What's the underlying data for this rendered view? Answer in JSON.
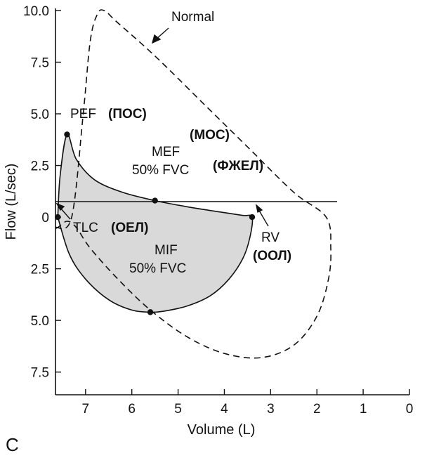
{
  "chart_data": {
    "type": "line",
    "xlabel": "Volume (L)",
    "ylabel": "Flow (L/sec)",
    "xlim": [
      7.65,
      0
    ],
    "ylim": [
      -8.6,
      10.0
    ],
    "x_ticks": [
      7,
      6,
      5,
      4,
      3,
      2,
      1,
      0
    ],
    "x_tick_labels": [
      "7",
      "6",
      "5",
      "4",
      "3",
      "2",
      "1",
      "0"
    ],
    "y_ticks": [
      10.0,
      7.5,
      5.0,
      2.5,
      0,
      -2.5,
      -5.0,
      -7.5
    ],
    "y_tick_labels": [
      "10.0",
      "7.5",
      "5.0",
      "2.5",
      "0",
      "2.5",
      "5.0",
      "7.5"
    ],
    "series": [
      {
        "style": "dashed",
        "x": [
          7.65,
          7.3,
          7.05,
          6.9,
          6.75,
          6.6,
          6.3,
          5.5,
          4.5,
          3.5,
          2.5,
          1.8,
          1.7,
          1.75,
          2.0,
          2.5,
          3.2,
          4.0,
          4.8,
          5.6,
          6.3,
          6.9,
          7.2,
          7.4,
          7.6
        ],
        "y": [
          -0.5,
          0.0,
          5.0,
          8.5,
          9.8,
          10.0,
          9.4,
          7.8,
          5.6,
          3.4,
          1.2,
          0.0,
          -1.5,
          -3.0,
          -4.8,
          -6.2,
          -6.8,
          -6.6,
          -5.8,
          -4.5,
          -3.0,
          -1.5,
          -0.5,
          -0.2,
          -0.5
        ]
      },
      {
        "style": "solid-shaded",
        "x": [
          7.6,
          7.55,
          7.4,
          7.2,
          6.8,
          6.2,
          5.5,
          4.8,
          4.1,
          3.6,
          3.4,
          3.45,
          3.6,
          3.9,
          4.3,
          4.8,
          5.3,
          5.6,
          6.0,
          6.5,
          7.0,
          7.35,
          7.6
        ],
        "y": [
          0.0,
          2.0,
          4.0,
          2.8,
          1.8,
          1.2,
          0.8,
          0.5,
          0.25,
          0.08,
          0.0,
          -1.0,
          -2.0,
          -3.0,
          -3.8,
          -4.3,
          -4.55,
          -4.6,
          -4.5,
          -4.0,
          -3.0,
          -1.8,
          0.0
        ]
      }
    ],
    "markers": [
      {
        "x": 7.4,
        "y": 4.0
      },
      {
        "x": 5.5,
        "y": 0.8
      },
      {
        "x": 3.4,
        "y": 0.0
      },
      {
        "x": 7.6,
        "y": 0.0
      },
      {
        "x": 5.6,
        "y": -4.6
      }
    ],
    "annotations": {
      "normal": "Normal",
      "pef": "PEF",
      "pef_ru": "(ПОС)",
      "moc_ru": "(МОС)",
      "mef": "MEF",
      "mef_fvc": "50% FVC",
      "mef_fvc_ru": "(ФЖЕЛ)",
      "tlc": "TLC",
      "tlc_ru": "(ОЕЛ)",
      "mif": "MIF",
      "mif_fvc": "50% FVC",
      "rv": "RV",
      "rv_ru": "(ООЛ)",
      "panel": "C"
    }
  }
}
